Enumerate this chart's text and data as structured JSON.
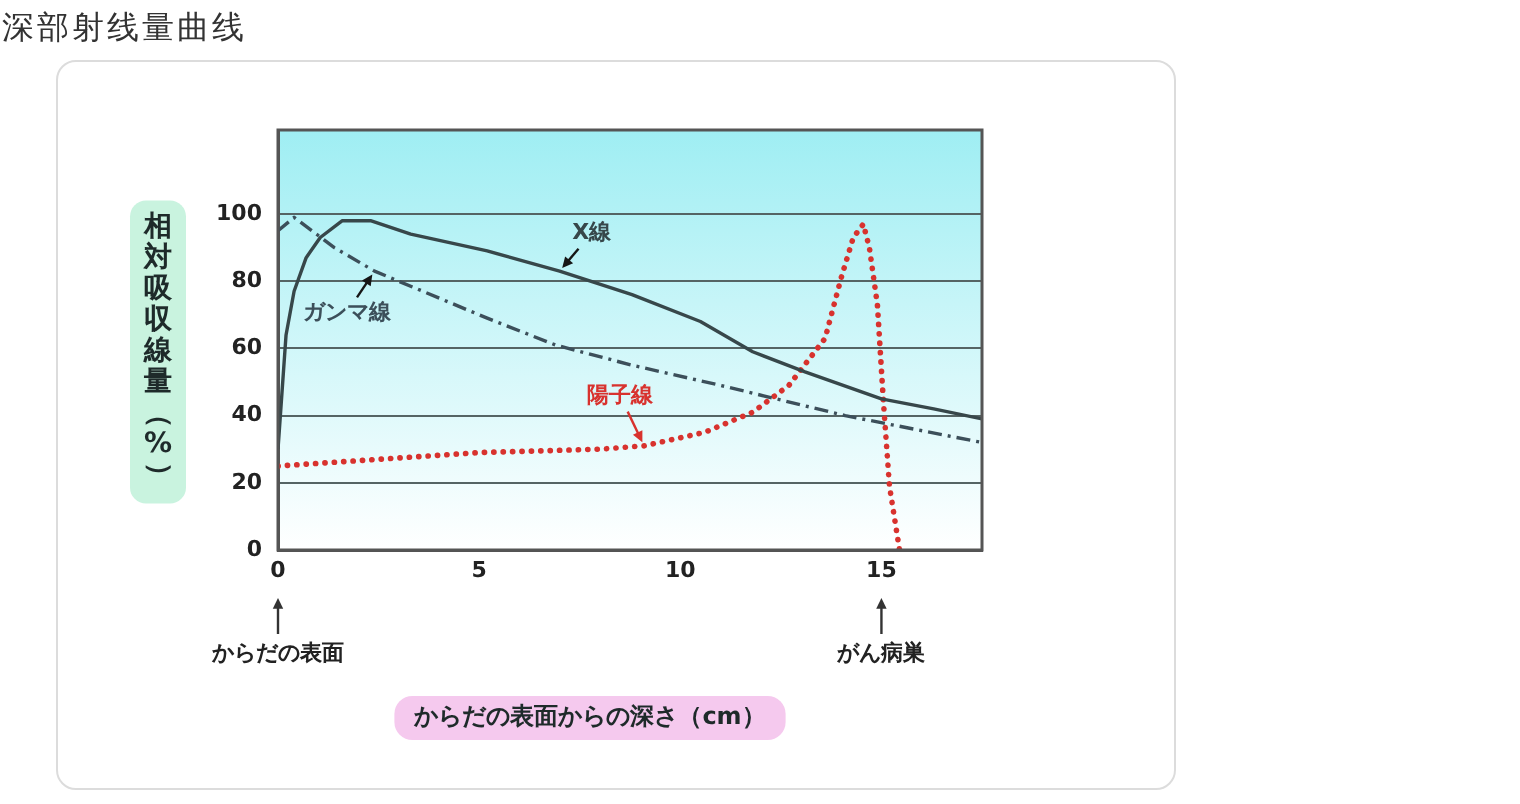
{
  "chart_data": {
    "type": "line",
    "title": "深部射线量曲线",
    "xlabel": "からだの表面からの深さ（cm）",
    "ylabel": "相対吸収線量（%）",
    "xlim": [
      0,
      17.5
    ],
    "xticks": [
      0,
      5,
      10,
      15
    ],
    "ylim": [
      0,
      125
    ],
    "yticks": [
      0,
      20,
      40,
      60,
      80,
      100
    ],
    "grid": "y",
    "legend": false,
    "annotations": [
      {
        "text": "からだの表面",
        "x": 0
      },
      {
        "text": "がん病巣",
        "x": 15
      }
    ],
    "series": [
      {
        "name": "X線",
        "color": "#37474a",
        "line_style": "solid",
        "x": [
          0,
          0.2,
          0.4,
          0.7,
          1.05,
          1.6,
          2.3,
          3.3,
          5.2,
          7,
          8.8,
          10.5,
          11.8,
          13.1,
          15,
          16.3,
          17.5
        ],
        "values": [
          30,
          64,
          77,
          87,
          93,
          98,
          98,
          94,
          89,
          83,
          76,
          68,
          59,
          53,
          45,
          42,
          39
        ]
      },
      {
        "name": "ガンマ線",
        "color": "#3c4f5a",
        "line_style": "dashed",
        "x": [
          0,
          0.4,
          1.4,
          2.4,
          5.2,
          6.9,
          8.8,
          11,
          14.1,
          17.5
        ],
        "values": [
          95,
          99,
          90,
          83,
          69,
          61,
          55,
          49,
          40,
          32
        ]
      },
      {
        "name": "陽子線",
        "color": "#d8322e",
        "line_style": "dotted",
        "x": [
          0,
          5,
          8,
          9.1,
          10.6,
          11.8,
          12.7,
          13.6,
          14,
          14.3,
          14.55,
          14.7,
          14.9,
          15.05,
          15.2,
          15.45
        ],
        "values": [
          25,
          29,
          30,
          31,
          35,
          41,
          49,
          63,
          81,
          93,
          97,
          90,
          73,
          44,
          19,
          0
        ]
      }
    ]
  }
}
